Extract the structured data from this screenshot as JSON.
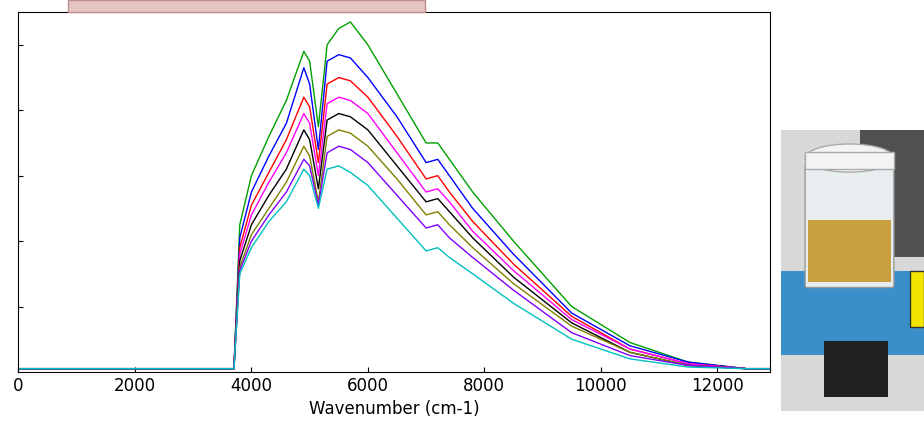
{
  "chart_data": {
    "type": "line",
    "x_label": "Wavenumber (cm-1)",
    "x": [
      0,
      3600,
      3700,
      3800,
      4000,
      4300,
      4600,
      4900,
      5000,
      5150,
      5300,
      5500,
      5700,
      6000,
      6500,
      7000,
      7200,
      7400,
      7800,
      8500,
      9500,
      10500,
      11500,
      12500,
      12900
    ],
    "series": [
      {
        "color": "#00a000",
        "values": [
          0.01,
          0.01,
          0.01,
          0.45,
          0.6,
          0.72,
          0.83,
          0.98,
          0.95,
          0.75,
          1.0,
          1.05,
          1.07,
          1.0,
          0.85,
          0.7,
          0.7,
          0.65,
          0.55,
          0.4,
          0.2,
          0.09,
          0.03,
          0.01,
          0.01
        ]
      },
      {
        "color": "#0000ff",
        "values": [
          0.01,
          0.01,
          0.01,
          0.41,
          0.55,
          0.66,
          0.76,
          0.93,
          0.88,
          0.68,
          0.95,
          0.97,
          0.96,
          0.9,
          0.78,
          0.64,
          0.65,
          0.6,
          0.5,
          0.36,
          0.18,
          0.08,
          0.03,
          0.01,
          0.01
        ]
      },
      {
        "color": "#ff0000",
        "values": [
          0.01,
          0.01,
          0.01,
          0.38,
          0.51,
          0.61,
          0.71,
          0.84,
          0.81,
          0.64,
          0.88,
          0.9,
          0.89,
          0.84,
          0.72,
          0.59,
          0.6,
          0.55,
          0.46,
          0.33,
          0.17,
          0.07,
          0.025,
          0.01,
          0.01
        ]
      },
      {
        "color": "#ff00ff",
        "values": [
          0.01,
          0.01,
          0.01,
          0.36,
          0.48,
          0.58,
          0.67,
          0.79,
          0.76,
          0.6,
          0.82,
          0.84,
          0.83,
          0.79,
          0.67,
          0.55,
          0.56,
          0.52,
          0.43,
          0.31,
          0.16,
          0.07,
          0.025,
          0.01,
          0.01
        ]
      },
      {
        "color": "#000000",
        "values": [
          0.01,
          0.01,
          0.01,
          0.34,
          0.45,
          0.54,
          0.62,
          0.74,
          0.71,
          0.56,
          0.77,
          0.79,
          0.78,
          0.74,
          0.63,
          0.52,
          0.53,
          0.49,
          0.41,
          0.29,
          0.15,
          0.06,
          0.02,
          0.01,
          0.01
        ]
      },
      {
        "color": "#808000",
        "values": [
          0.01,
          0.01,
          0.01,
          0.32,
          0.42,
          0.5,
          0.58,
          0.69,
          0.66,
          0.52,
          0.72,
          0.74,
          0.73,
          0.69,
          0.59,
          0.48,
          0.49,
          0.45,
          0.38,
          0.27,
          0.14,
          0.06,
          0.02,
          0.01,
          0.01
        ]
      },
      {
        "color": "#8000ff",
        "values": [
          0.01,
          0.01,
          0.01,
          0.31,
          0.4,
          0.48,
          0.55,
          0.65,
          0.63,
          0.51,
          0.67,
          0.69,
          0.68,
          0.64,
          0.54,
          0.44,
          0.45,
          0.41,
          0.35,
          0.25,
          0.12,
          0.05,
          0.02,
          0.01,
          0.01
        ]
      },
      {
        "color": "#00c0c0",
        "values": [
          0.01,
          0.01,
          0.01,
          0.3,
          0.38,
          0.46,
          0.52,
          0.62,
          0.6,
          0.5,
          0.62,
          0.63,
          0.61,
          0.57,
          0.47,
          0.37,
          0.38,
          0.35,
          0.3,
          0.21,
          0.1,
          0.04,
          0.015,
          0.01,
          0.01
        ]
      }
    ],
    "xlim": [
      0,
      12900
    ],
    "xticks": [
      0,
      2000,
      4000,
      6000,
      8000,
      10000,
      12000
    ],
    "ylim": [
      0,
      1.1
    ],
    "yticks": [
      0.2,
      0.4,
      0.6,
      0.8,
      1.0
    ],
    "tick_labels": "x",
    "grid": false
  }
}
